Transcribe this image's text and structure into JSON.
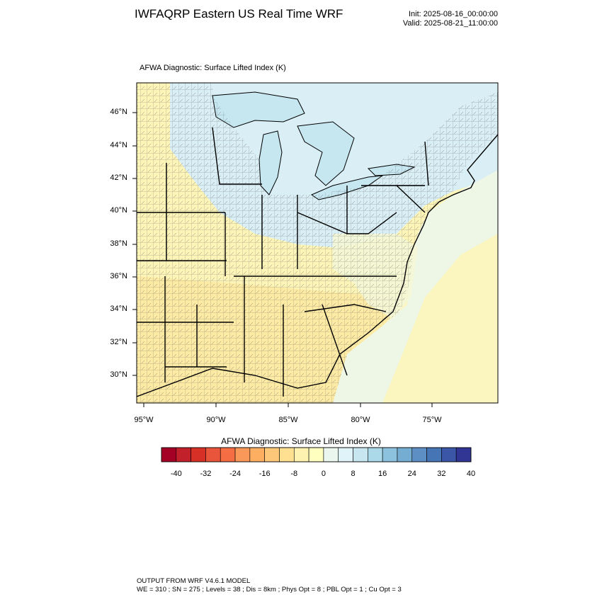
{
  "title": "IWFAQRP Eastern US Real Time WRF",
  "init": "Init: 2025-08-16_00:00:00",
  "valid": "Valid: 2025-08-21_11:00:00",
  "plot_title": "AFWA Diagnostic: Surface Lifted Index   (K)",
  "map": {
    "lat_labels": [
      "46°N",
      "44°N",
      "42°N",
      "40°N",
      "38°N",
      "36°N",
      "34°N",
      "32°N",
      "30°N"
    ],
    "lon_labels": [
      "95°W",
      "90°W",
      "85°W",
      "80°W",
      "75°W"
    ],
    "colors": {
      "land_warm": "#fdf5b8",
      "land_warm_south": "#fde8a0",
      "neutral": "#f4f7d6",
      "lakes": "#c6e6f0",
      "ocean": "#eef6e6",
      "cool_north": "#d9eff5"
    }
  },
  "colorbar": {
    "title": "AFWA Diagnostic: Surface Lifted Index  (K)",
    "tick_labels": [
      "-40",
      "-32",
      "-24",
      "-16",
      "-8",
      "0",
      "8",
      "16",
      "24",
      "32",
      "40"
    ],
    "colors": [
      "#a50026",
      "#c2212b",
      "#d73027",
      "#e8553a",
      "#f46d43",
      "#f99858",
      "#fdae61",
      "#fdc77a",
      "#fee090",
      "#fef2b0",
      "#ffffbf",
      "#eaf6ee",
      "#e0f3f8",
      "#c7e6f0",
      "#abd9e9",
      "#8dc2de",
      "#74add1",
      "#5e8fc4",
      "#4575b4",
      "#3b56a6",
      "#313695"
    ]
  },
  "footer": {
    "line1": "OUTPUT FROM WRF V4.6.1 MODEL",
    "line2": "WE = 310 ; SN = 275 ; Levels = 38 ; Dis = 8km ; Phys Opt = 8 ; PBL Opt = 1 ; Cu Opt = 3"
  }
}
